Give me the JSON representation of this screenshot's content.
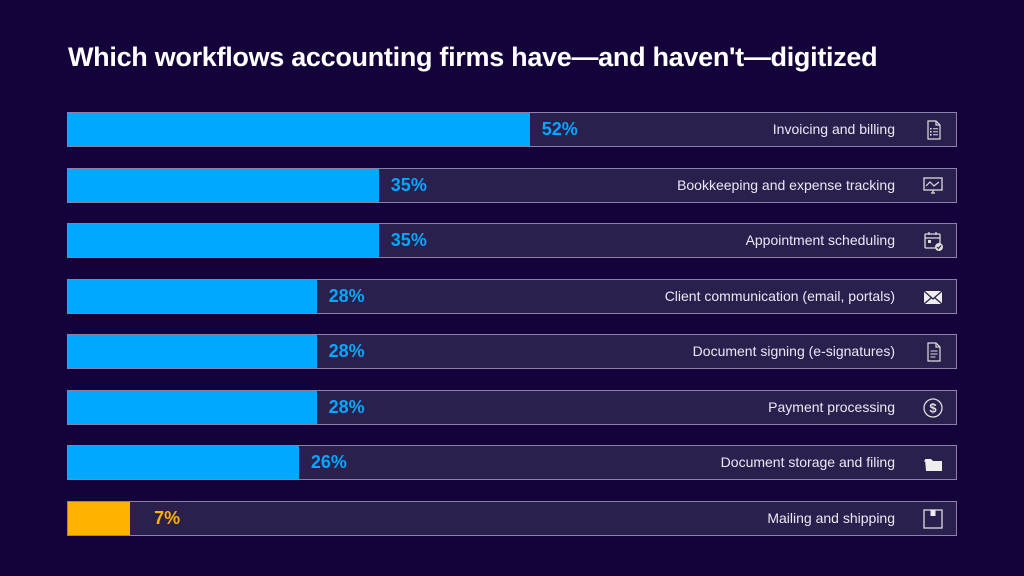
{
  "title": "Which workflows accounting firms have—and haven't—digitized",
  "colors": {
    "background": "#13033a",
    "track": "#2b1f4d",
    "border": "#8a80a8",
    "primary": "#00a8ff",
    "highlight": "#ffb300",
    "label": "#ece8f5"
  },
  "rows": [
    {
      "label": "Invoicing and billing",
      "value": 52,
      "pct_label": "52%",
      "icon": "invoice-icon",
      "color": "#00a8ff"
    },
    {
      "label": "Bookkeeping and expense tracking",
      "value": 35,
      "pct_label": "35%",
      "icon": "monitor-chart-icon",
      "color": "#00a8ff"
    },
    {
      "label": "Appointment scheduling",
      "value": 35,
      "pct_label": "35%",
      "icon": "calendar-check-icon",
      "color": "#00a8ff"
    },
    {
      "label": "Client communication (email, portals)",
      "value": 28,
      "pct_label": "28%",
      "icon": "envelope-icon",
      "color": "#00a8ff"
    },
    {
      "label": "Document signing (e-signatures)",
      "value": 28,
      "pct_label": "28%",
      "icon": "document-icon",
      "color": "#00a8ff"
    },
    {
      "label": "Payment processing",
      "value": 28,
      "pct_label": "28%",
      "icon": "dollar-circle-icon",
      "color": "#00a8ff"
    },
    {
      "label": "Document storage and filing",
      "value": 26,
      "pct_label": "26%",
      "icon": "folder-icon",
      "color": "#00a8ff"
    },
    {
      "label": "Mailing and shipping",
      "value": 7,
      "pct_label": "7%",
      "icon": "box-icon",
      "color": "#ffb300"
    }
  ],
  "chart_data": {
    "type": "bar",
    "orientation": "horizontal",
    "title": "Which workflows accounting firms have—and haven't—digitized",
    "categories": [
      "Invoicing and billing",
      "Bookkeeping and expense tracking",
      "Appointment scheduling",
      "Client communication (email, portals)",
      "Document signing (e-signatures)",
      "Payment processing",
      "Document storage and filing",
      "Mailing and shipping"
    ],
    "values": [
      52,
      35,
      35,
      28,
      28,
      28,
      26,
      7
    ],
    "unit": "%",
    "xlabel": "",
    "ylabel": "",
    "xlim": [
      0,
      100
    ],
    "grid": false,
    "legend": "none",
    "highlighted": [
      "Mailing and shipping"
    ]
  }
}
